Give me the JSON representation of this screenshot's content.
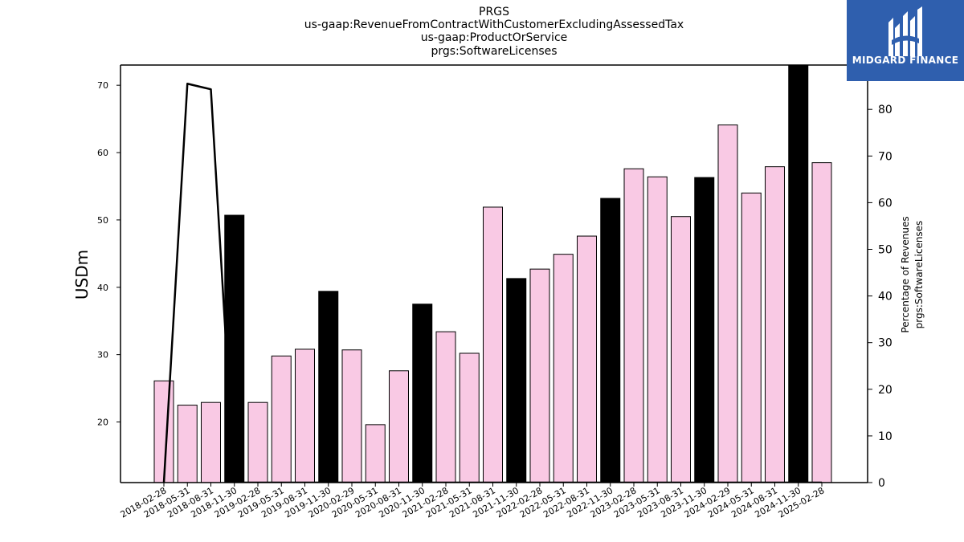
{
  "titles": {
    "line1": "PRGS",
    "line2": "us-gaap:RevenueFromContractWithCustomerExcludingAssessedTax",
    "line3": "us-gaap:ProductOrService",
    "line4": "prgs:SoftwareLicenses"
  },
  "logo": {
    "text": "MIDGARD FINANCE",
    "icon": "midgard-logo-icon",
    "bg_color": "#2f5fae"
  },
  "chart_data": {
    "type": "bar",
    "ylabel": "USDm",
    "y2label_line1": "Percentage of Revenues",
    "y2label_line2": "prgs:SoftwareLicenses",
    "ylim": [
      11,
      73
    ],
    "y2lim": [
      0,
      89.5
    ],
    "yticks": [
      20,
      30,
      40,
      50,
      60,
      70
    ],
    "y2ticks": [
      0,
      10,
      20,
      30,
      40,
      50,
      60,
      70,
      80
    ],
    "categories": [
      "2018-02-28",
      "2018-05-31",
      "2018-08-31",
      "2018-11-30",
      "2019-02-28",
      "2019-05-31",
      "2019-08-31",
      "2019-11-30",
      "2020-02-29",
      "2020-05-31",
      "2020-08-31",
      "2020-11-30",
      "2021-02-28",
      "2021-05-31",
      "2021-08-31",
      "2021-11-30",
      "2022-02-28",
      "2022-05-31",
      "2022-08-31",
      "2022-11-30",
      "2023-02-28",
      "2023-05-31",
      "2023-08-31",
      "2023-11-30",
      "2024-02-29",
      "2024-05-31",
      "2024-08-31",
      "2024-11-30",
      "2025-02-28"
    ],
    "values": [
      26.1,
      22.5,
      22.9,
      50.7,
      22.9,
      29.8,
      30.8,
      39.4,
      30.7,
      19.6,
      27.6,
      37.5,
      33.4,
      30.2,
      51.9,
      41.3,
      42.7,
      44.9,
      47.6,
      53.2,
      57.6,
      56.4,
      50.5,
      56.3,
      64.1,
      54.0,
      57.9,
      73.5,
      58.5
    ],
    "fiscal_q4": [
      false,
      false,
      false,
      true,
      false,
      false,
      false,
      true,
      false,
      false,
      false,
      true,
      false,
      false,
      false,
      true,
      false,
      false,
      false,
      true,
      false,
      false,
      false,
      true,
      false,
      false,
      false,
      true,
      false
    ],
    "line_percent": [
      0,
      85.5,
      84.3,
      0,
      0,
      0,
      0,
      0,
      0,
      0,
      0,
      0,
      0,
      0,
      0,
      0,
      0,
      0,
      0,
      0,
      0,
      0,
      0,
      0,
      0,
      0,
      0,
      0,
      0
    ],
    "colors": {
      "bar": "#f9c9e4",
      "bar_q4": "#000000",
      "line": "#000000"
    },
    "grid": false,
    "legend": "none"
  }
}
